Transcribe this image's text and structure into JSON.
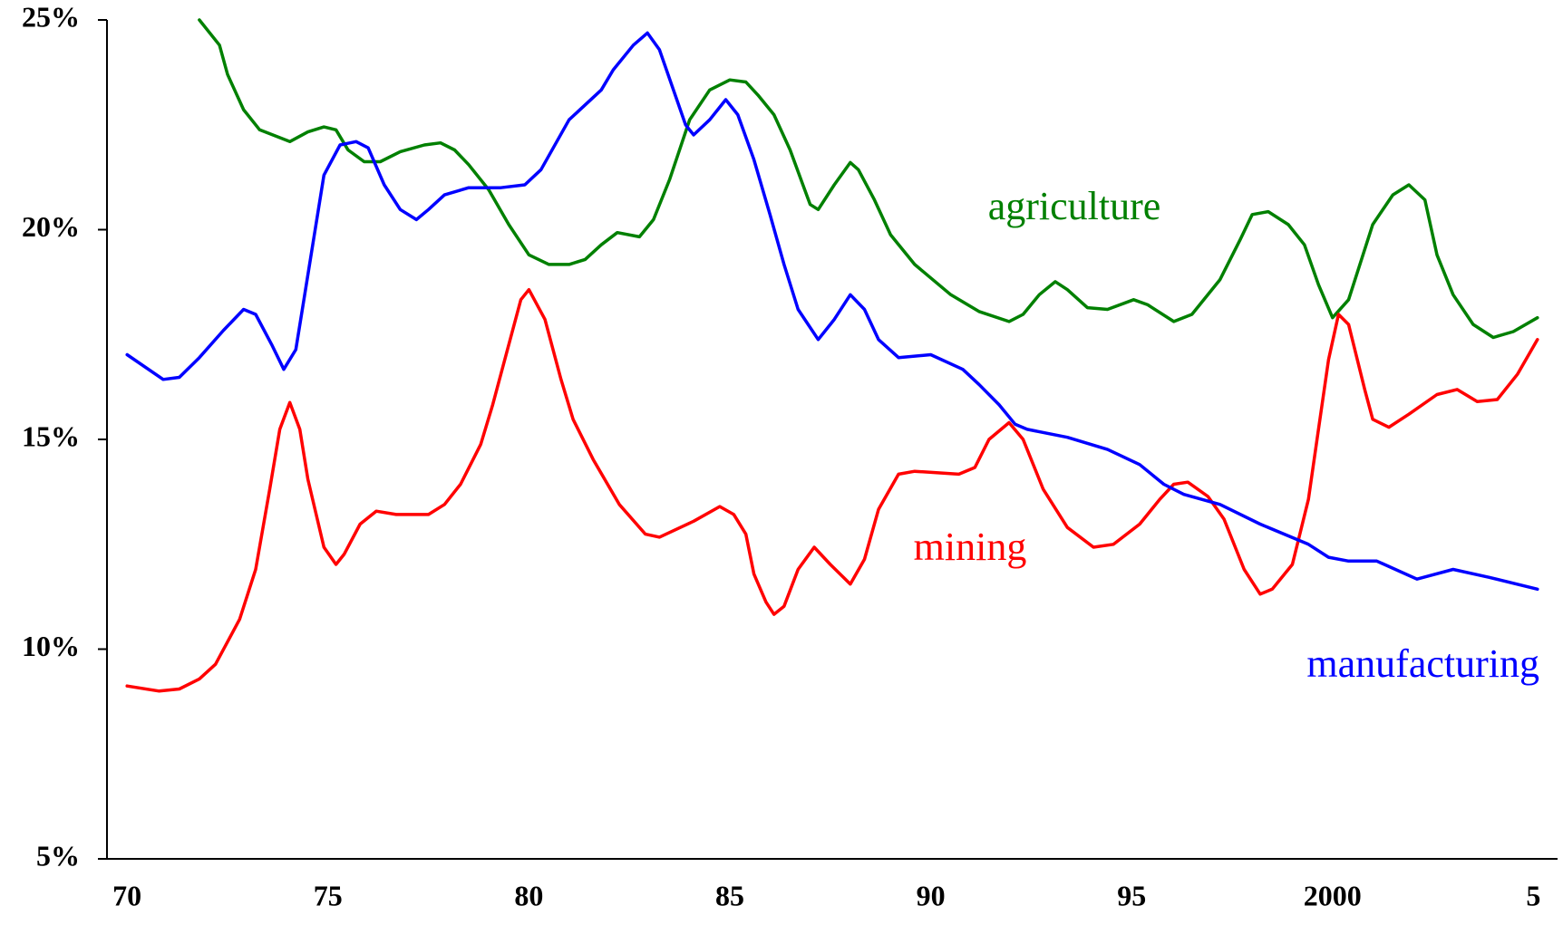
{
  "chart_data": {
    "type": "line",
    "xlim": [
      1969.5,
      2005.6
    ],
    "ylim": [
      5,
      25
    ],
    "xticks": [
      {
        "value": 1970,
        "label": "70"
      },
      {
        "value": 1975,
        "label": "75"
      },
      {
        "value": 1980,
        "label": "80"
      },
      {
        "value": 1985,
        "label": "85"
      },
      {
        "value": 1990,
        "label": "90"
      },
      {
        "value": 1995,
        "label": "95"
      },
      {
        "value": 2000,
        "label": "2000"
      },
      {
        "value": 2005,
        "label": "5"
      }
    ],
    "yticks": [
      {
        "value": 5,
        "label": "5%"
      },
      {
        "value": 10,
        "label": "10%"
      },
      {
        "value": 15,
        "label": "15%"
      },
      {
        "value": 20,
        "label": "20%"
      },
      {
        "value": 25,
        "label": "25%"
      }
    ],
    "series": [
      {
        "name": "agriculture",
        "color": "#008000",
        "x": [
          1971.8,
          1972.3,
          1972.5,
          1972.9,
          1973.3,
          1974.05,
          1974.5,
          1974.9,
          1975.2,
          1975.5,
          1975.9,
          1976.3,
          1976.8,
          1977.4,
          1977.8,
          1978.15,
          1978.5,
          1979.0,
          1979.5,
          1980.0,
          1980.5,
          1981.0,
          1981.4,
          1981.8,
          1982.2,
          1982.75,
          1983.1,
          1983.5,
          1984.0,
          1984.5,
          1985.0,
          1985.4,
          1985.7,
          1986.1,
          1986.5,
          1987.0,
          1987.2,
          1987.6,
          1988.0,
          1988.2,
          1988.6,
          1989.0,
          1989.6,
          1990.5,
          1991.2,
          1991.95,
          1992.3,
          1992.7,
          1993.1,
          1993.4,
          1993.9,
          1994.4,
          1995.05,
          1995.4,
          1996.05,
          1996.5,
          1997.2,
          1997.7,
          1998.0,
          1998.4,
          1998.9,
          1999.3,
          1999.65,
          2000.0,
          2000.4,
          2001.0,
          2001.5,
          2001.9,
          2002.3,
          2002.6,
          2003.0,
          2003.5,
          2004.0,
          2004.5,
          2005.1
        ],
        "values": [
          25.0,
          24.4,
          23.7,
          22.86,
          22.38,
          22.1,
          22.33,
          22.45,
          22.38,
          21.9,
          21.62,
          21.62,
          21.86,
          22.02,
          22.07,
          21.9,
          21.55,
          20.95,
          20.12,
          19.4,
          19.17,
          19.17,
          19.29,
          19.64,
          19.93,
          19.83,
          20.24,
          21.19,
          22.62,
          23.33,
          23.57,
          23.52,
          23.21,
          22.74,
          21.9,
          20.6,
          20.48,
          21.07,
          21.6,
          21.43,
          20.71,
          19.88,
          19.17,
          18.45,
          18.05,
          17.81,
          17.98,
          18.45,
          18.76,
          18.57,
          18.14,
          18.1,
          18.33,
          18.21,
          17.81,
          17.98,
          18.81,
          19.76,
          20.36,
          20.43,
          20.12,
          19.64,
          18.69,
          17.9,
          18.33,
          20.12,
          20.83,
          21.07,
          20.71,
          19.4,
          18.45,
          17.74,
          17.43,
          17.57,
          17.9
        ]
      },
      {
        "name": "mining",
        "color": "#ff0000",
        "x": [
          1970.0,
          1970.8,
          1971.3,
          1971.8,
          1972.2,
          1972.8,
          1973.2,
          1973.55,
          1973.8,
          1974.05,
          1974.3,
          1974.5,
          1974.9,
          1975.2,
          1975.4,
          1975.8,
          1976.2,
          1976.7,
          1977.5,
          1977.9,
          1978.3,
          1978.8,
          1979.1,
          1979.5,
          1979.8,
          1980.0,
          1980.4,
          1980.8,
          1981.1,
          1981.6,
          1982.25,
          1982.9,
          1983.25,
          1984.1,
          1984.75,
          1985.1,
          1985.4,
          1985.6,
          1985.9,
          1986.1,
          1986.35,
          1986.7,
          1987.1,
          1987.5,
          1988.0,
          1988.35,
          1988.7,
          1989.2,
          1989.6,
          1990.7,
          1991.1,
          1991.45,
          1991.95,
          1992.3,
          1992.8,
          1993.4,
          1994.05,
          1994.55,
          1995.2,
          1995.7,
          1996.05,
          1996.4,
          1996.9,
          1997.3,
          1997.8,
          1998.2,
          1998.5,
          1999.0,
          1999.4,
          1999.65,
          1999.9,
          2000.15,
          2000.4,
          2000.8,
          2001.0,
          2001.4,
          2001.9,
          2002.6,
          2003.1,
          2003.6,
          2004.1,
          2004.6,
          2005.1
        ],
        "values": [
          9.12,
          9.0,
          9.05,
          9.29,
          9.64,
          10.71,
          11.9,
          13.81,
          15.24,
          15.88,
          15.24,
          14.05,
          12.43,
          12.02,
          12.26,
          12.98,
          13.29,
          13.21,
          13.21,
          13.45,
          13.93,
          14.88,
          15.83,
          17.26,
          18.33,
          18.57,
          17.86,
          16.43,
          15.48,
          14.52,
          13.45,
          12.74,
          12.67,
          13.05,
          13.4,
          13.21,
          12.74,
          11.79,
          11.12,
          10.83,
          11.02,
          11.9,
          12.43,
          12.02,
          11.55,
          12.14,
          13.33,
          14.17,
          14.24,
          14.17,
          14.33,
          15.0,
          15.4,
          15.0,
          13.81,
          12.9,
          12.43,
          12.5,
          12.98,
          13.57,
          13.93,
          13.98,
          13.64,
          13.1,
          11.9,
          11.31,
          11.43,
          12.02,
          13.57,
          15.24,
          16.9,
          17.98,
          17.74,
          16.19,
          15.48,
          15.29,
          15.6,
          16.07,
          16.19,
          15.9,
          15.95,
          16.55,
          17.38
        ]
      },
      {
        "name": "manufacturing",
        "color": "#0000ff",
        "x": [
          1970.0,
          1970.9,
          1971.3,
          1971.8,
          1972.4,
          1972.9,
          1973.2,
          1973.6,
          1973.9,
          1974.2,
          1974.4,
          1974.9,
          1975.3,
          1975.7,
          1976.0,
          1976.4,
          1976.8,
          1977.2,
          1977.5,
          1977.9,
          1978.5,
          1979.3,
          1979.9,
          1980.3,
          1981.0,
          1981.8,
          1982.1,
          1982.6,
          1982.95,
          1983.25,
          1983.9,
          1984.1,
          1984.5,
          1984.9,
          1985.2,
          1985.6,
          1986.0,
          1986.35,
          1986.7,
          1987.2,
          1987.6,
          1988.0,
          1988.35,
          1988.7,
          1989.2,
          1990.0,
          1990.8,
          1991.2,
          1991.7,
          1992.1,
          1992.4,
          1993.4,
          1994.4,
          1995.2,
          1995.8,
          1996.3,
          1997.2,
          1998.2,
          1999.4,
          1999.9,
          2000.4,
          2001.1,
          2002.1,
          2003.0,
          2003.9,
          2005.1
        ],
        "values": [
          17.02,
          16.43,
          16.48,
          16.95,
          17.6,
          18.1,
          17.98,
          17.26,
          16.67,
          17.14,
          18.33,
          21.3,
          22.02,
          22.1,
          21.95,
          21.07,
          20.48,
          20.24,
          20.48,
          20.83,
          21.0,
          21.0,
          21.07,
          21.43,
          22.62,
          23.33,
          23.81,
          24.4,
          24.69,
          24.29,
          22.5,
          22.26,
          22.62,
          23.1,
          22.74,
          21.67,
          20.36,
          19.17,
          18.1,
          17.38,
          17.86,
          18.45,
          18.1,
          17.38,
          16.95,
          17.02,
          16.67,
          16.31,
          15.83,
          15.36,
          15.24,
          15.05,
          14.76,
          14.4,
          13.93,
          13.69,
          13.45,
          12.98,
          12.5,
          12.19,
          12.1,
          12.1,
          11.67,
          11.9,
          11.71,
          11.43
        ]
      }
    ]
  }
}
